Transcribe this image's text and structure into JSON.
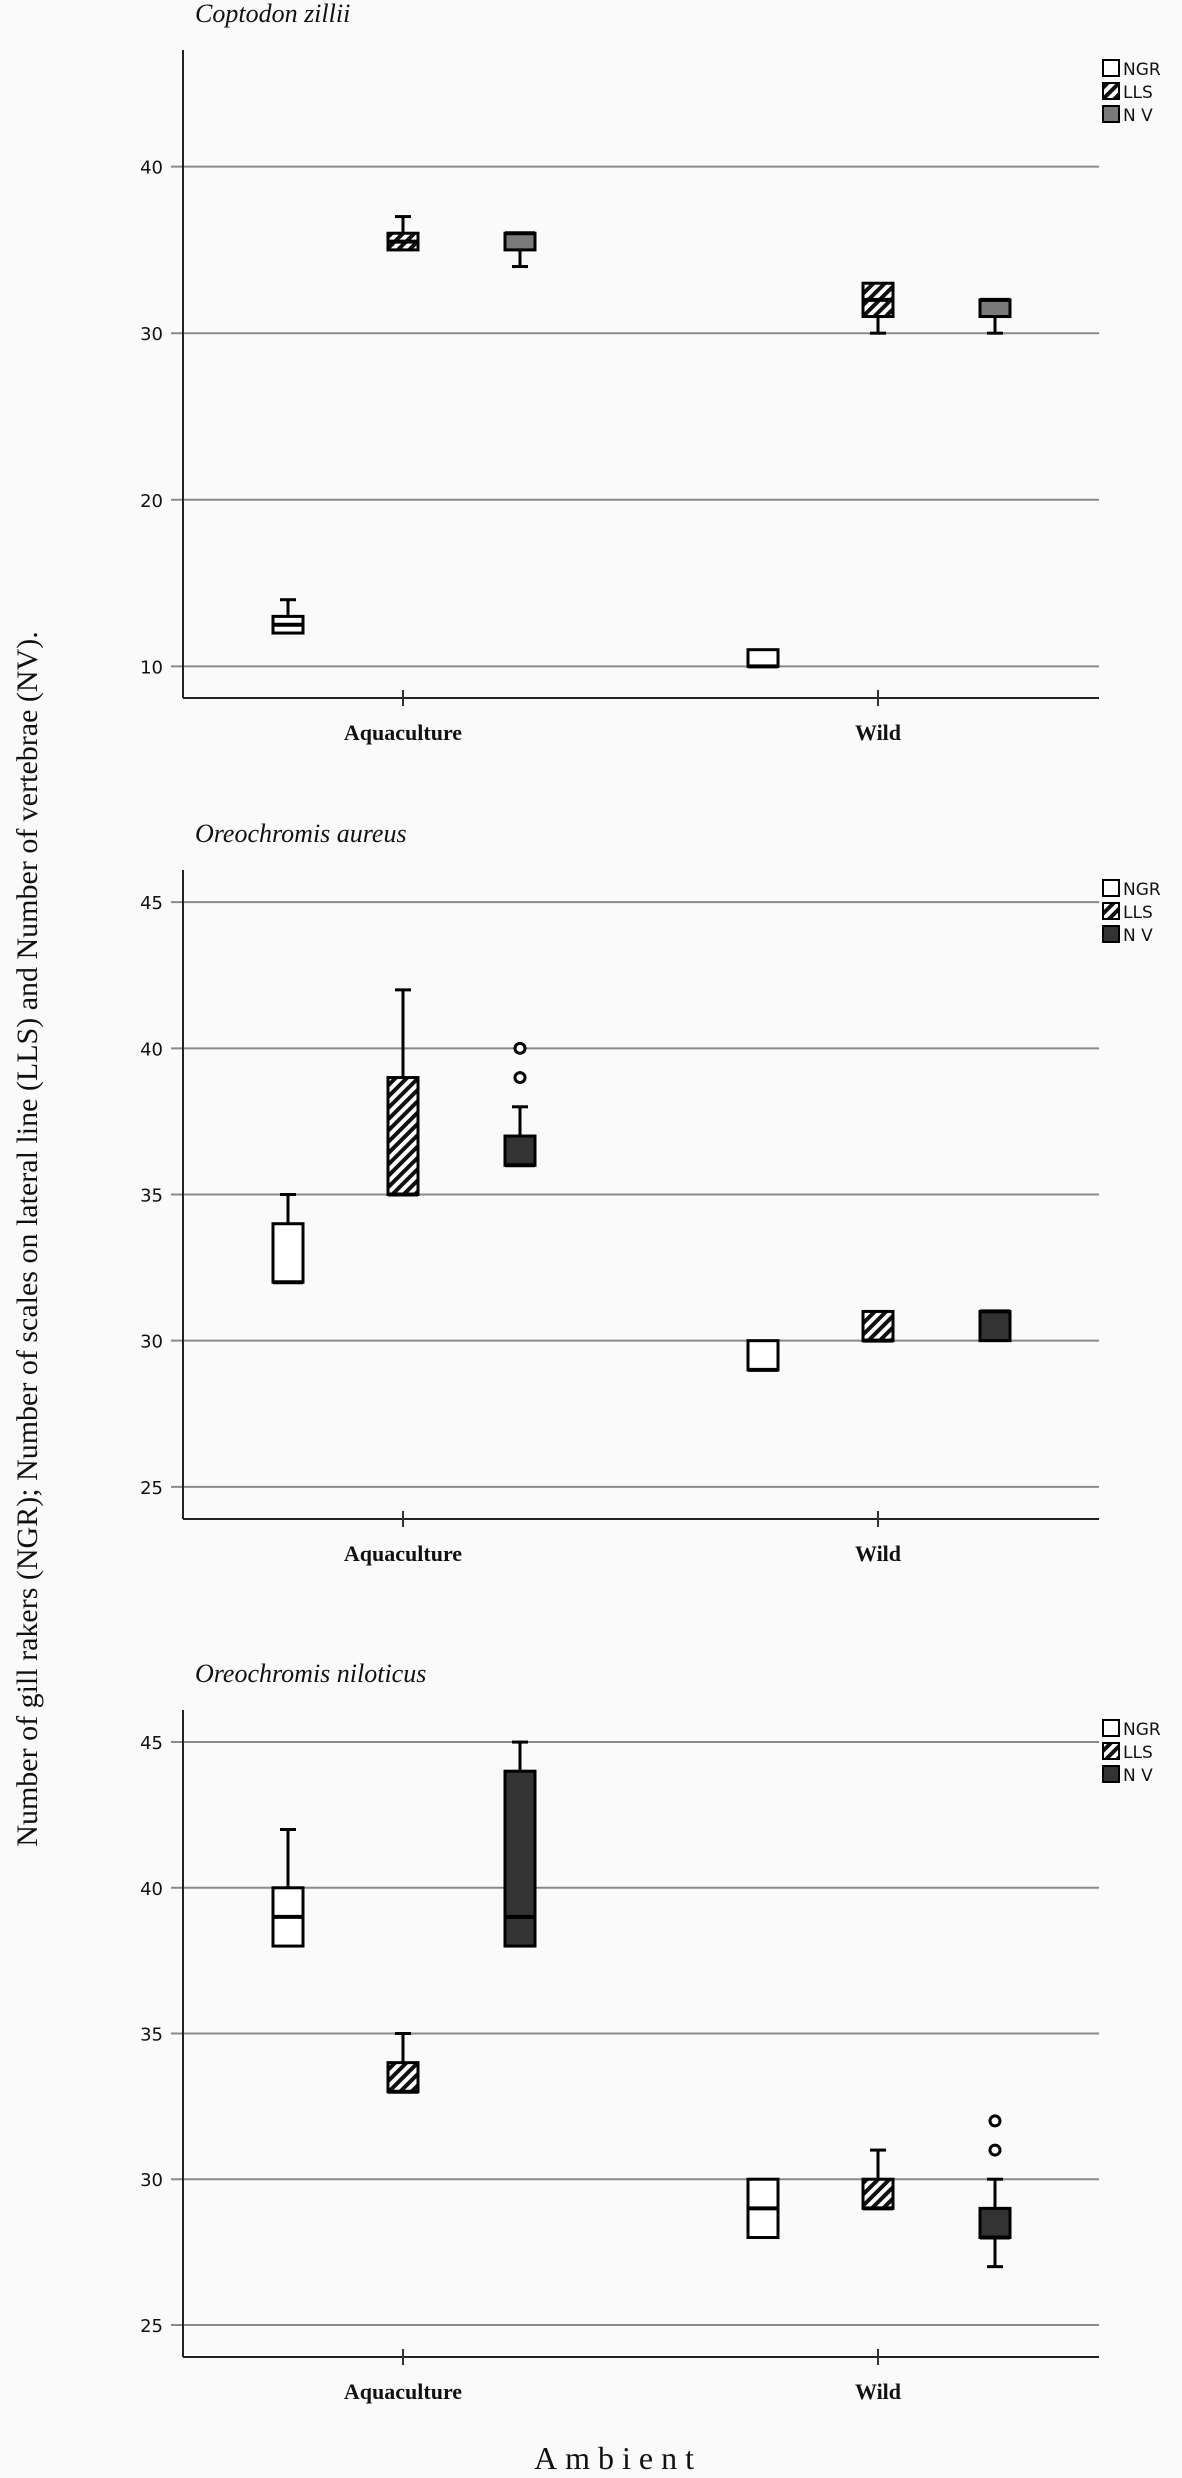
{
  "chart_data": {
    "type": "boxplot",
    "ylabel": "Number of  gill rakers (NGR); Number of scales on lateral line (LLS) and Number of vertebrae (NV).",
    "xlabel": "Ambient",
    "categories": [
      "Aquaculture",
      "Wild"
    ],
    "legend": {
      "placement": "top-right",
      "entries": [
        {
          "key": "NGR",
          "label": "NGR",
          "fill": "white"
        },
        {
          "key": "LLS",
          "label": "LLS",
          "fill": "hatched"
        },
        {
          "key": "NV",
          "label": "N V",
          "fill": "gray"
        }
      ]
    },
    "panels": [
      {
        "title": "Coptodon zillii",
        "ylim": [
          8.1,
          47
        ],
        "yticks": [
          10,
          20,
          30,
          40
        ],
        "nv_color": "#7a7a7a",
        "boxes": {
          "Aquaculture": {
            "NGR": {
              "min": 12,
              "q1": 12,
              "median": 12.5,
              "q3": 13,
              "max": 14,
              "outliers": []
            },
            "LLS": {
              "min": 35,
              "q1": 35,
              "median": 35.5,
              "q3": 36,
              "max": 37,
              "outliers": []
            },
            "NV": {
              "min": 34,
              "q1": 35,
              "median": 36,
              "q3": 36,
              "max": 36,
              "outliers": []
            }
          },
          "Wild": {
            "NGR": {
              "min": 10,
              "q1": 10,
              "median": 10,
              "q3": 11,
              "max": 11,
              "outliers": []
            },
            "LLS": {
              "min": 30,
              "q1": 31,
              "median": 32,
              "q3": 33,
              "max": 33,
              "outliers": []
            },
            "NV": {
              "min": 30,
              "q1": 31,
              "median": 32,
              "q3": 32,
              "max": 32,
              "outliers": []
            }
          }
        }
      },
      {
        "title": "Oreochromis aureus",
        "ylim": [
          23.9,
          46.1
        ],
        "yticks": [
          25,
          30,
          35,
          40,
          45
        ],
        "nv_color": "#333333",
        "boxes": {
          "Aquaculture": {
            "NGR": {
              "min": 32,
              "q1": 32,
              "median": 32,
              "q3": 34,
              "max": 35,
              "outliers": []
            },
            "LLS": {
              "min": 35,
              "q1": 35,
              "median": 35,
              "q3": 39,
              "max": 42,
              "outliers": []
            },
            "NV": {
              "min": 36,
              "q1": 36,
              "median": 36,
              "q3": 37,
              "max": 38,
              "outliers": [
                39,
                40
              ]
            }
          },
          "Wild": {
            "NGR": {
              "min": 29,
              "q1": 29,
              "median": 29,
              "q3": 30,
              "max": 30,
              "outliers": []
            },
            "LLS": {
              "min": 30,
              "q1": 30,
              "median": 30,
              "q3": 31,
              "max": 31,
              "outliers": []
            },
            "NV": {
              "min": 30,
              "q1": 30,
              "median": 31,
              "q3": 31,
              "max": 31,
              "outliers": []
            }
          }
        }
      },
      {
        "title": "Oreochromis niloticus",
        "ylim": [
          23.9,
          46.1
        ],
        "yticks": [
          25,
          30,
          35,
          40,
          45
        ],
        "nv_color": "#333333",
        "boxes": {
          "Aquaculture": {
            "NGR": {
              "min": 38,
              "q1": 38,
              "median": 39,
              "q3": 40,
              "max": 42,
              "outliers": []
            },
            "LLS": {
              "min": 33,
              "q1": 33,
              "median": 33,
              "q3": 34,
              "max": 35,
              "outliers": []
            },
            "NV": {
              "min": 38,
              "q1": 38,
              "median": 39,
              "q3": 44,
              "max": 45,
              "outliers": []
            }
          },
          "Wild": {
            "NGR": {
              "min": 28,
              "q1": 28,
              "median": 29,
              "q3": 30,
              "max": 30,
              "outliers": []
            },
            "LLS": {
              "min": 29,
              "q1": 29,
              "median": 29,
              "q3": 30,
              "max": 31,
              "outliers": []
            },
            "NV": {
              "min": 27,
              "q1": 28,
              "median": 28,
              "q3": 29,
              "max": 30,
              "outliers": [
                31,
                32
              ]
            }
          }
        }
      }
    ]
  }
}
